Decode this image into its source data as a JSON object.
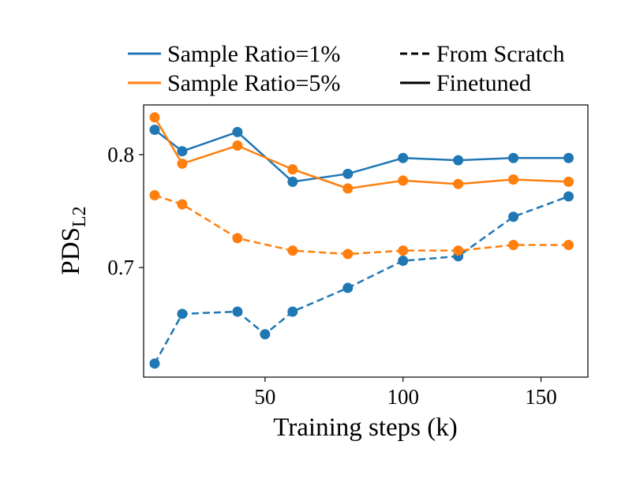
{
  "chart_data": {
    "type": "line",
    "xlabel": "Training steps (k)",
    "ylabel": "PDS",
    "ylabel_sub": "L2",
    "xlim": [
      6,
      167
    ],
    "ylim": [
      0.603,
      0.844
    ],
    "xticks": [
      50,
      100,
      150
    ],
    "yticks": [
      0.7,
      0.8
    ],
    "series": [
      {
        "name": "Sample Ratio=1%",
        "color": "#1f77b4",
        "lines": [
          {
            "style": "dashed",
            "x": [
              10,
              20,
              40,
              50,
              60,
              80,
              100,
              120,
              140,
              160
            ],
            "values": [
              0.615,
              0.659,
              0.661,
              0.641,
              0.661,
              0.682,
              0.706,
              0.71,
              0.745,
              0.763
            ]
          },
          {
            "style": "solid",
            "x": [
              10,
              20,
              40,
              60,
              80,
              100,
              120,
              140,
              160
            ],
            "values": [
              0.822,
              0.803,
              0.82,
              0.776,
              0.783,
              0.797,
              0.795,
              0.797,
              0.797
            ]
          }
        ]
      },
      {
        "name": "Sample Ratio=5%",
        "color": "#ff7f0e",
        "lines": [
          {
            "style": "dashed",
            "x": [
              10,
              20,
              40,
              60,
              80,
              100,
              120,
              140,
              160
            ],
            "values": [
              0.764,
              0.756,
              0.726,
              0.715,
              0.712,
              0.715,
              0.715,
              0.72,
              0.72
            ]
          },
          {
            "style": "solid",
            "x": [
              10,
              20,
              40,
              60,
              80,
              100,
              120,
              140,
              160
            ],
            "values": [
              0.833,
              0.792,
              0.808,
              0.787,
              0.77,
              0.777,
              0.774,
              0.778,
              0.776
            ]
          }
        ]
      }
    ],
    "line_styles": [
      {
        "name": "From Scratch",
        "style": "dashed"
      },
      {
        "name": "Finetuned",
        "style": "solid"
      }
    ]
  }
}
